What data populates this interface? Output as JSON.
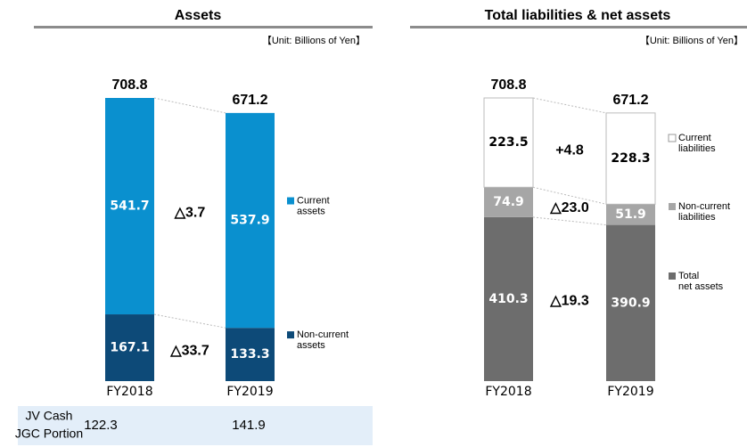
{
  "chart_data": [
    {
      "type": "stacked_bar",
      "title": "Assets",
      "unit": "【Unit: Billions of Yen】",
      "categories": [
        "FY2018",
        "FY2019"
      ],
      "series": [
        {
          "name": "Non-current assets",
          "color": "#0d4a78",
          "values": [
            167.1,
            133.3
          ]
        },
        {
          "name": "Current assets",
          "color": "#0a90cf",
          "values": [
            541.7,
            537.9
          ]
        }
      ],
      "totals": [
        708.8,
        671.2
      ],
      "changes": [
        "△33.7",
        "△3.7"
      ]
    },
    {
      "type": "stacked_bar",
      "title": "Total liabilities & net assets",
      "unit": "【Unit: Billions of Yen】",
      "categories": [
        "FY2018",
        "FY2019"
      ],
      "series": [
        {
          "name": "Total net assets",
          "color": "#6d6d6d",
          "values": [
            410.3,
            390.9
          ]
        },
        {
          "name": "Non-current liabilities",
          "color": "#a6a6a6",
          "values": [
            74.9,
            51.9
          ]
        },
        {
          "name": "Current liabilities",
          "color": "#ffffff",
          "values": [
            223.5,
            228.3
          ]
        }
      ],
      "totals": [
        708.8,
        671.2
      ],
      "changes": [
        "△19.3",
        "△23.0",
        "+4.8"
      ]
    }
  ],
  "jv_cash": {
    "label_lines": [
      "JV Cash",
      "JGC Portion"
    ],
    "values": [
      122.3,
      141.9
    ]
  }
}
